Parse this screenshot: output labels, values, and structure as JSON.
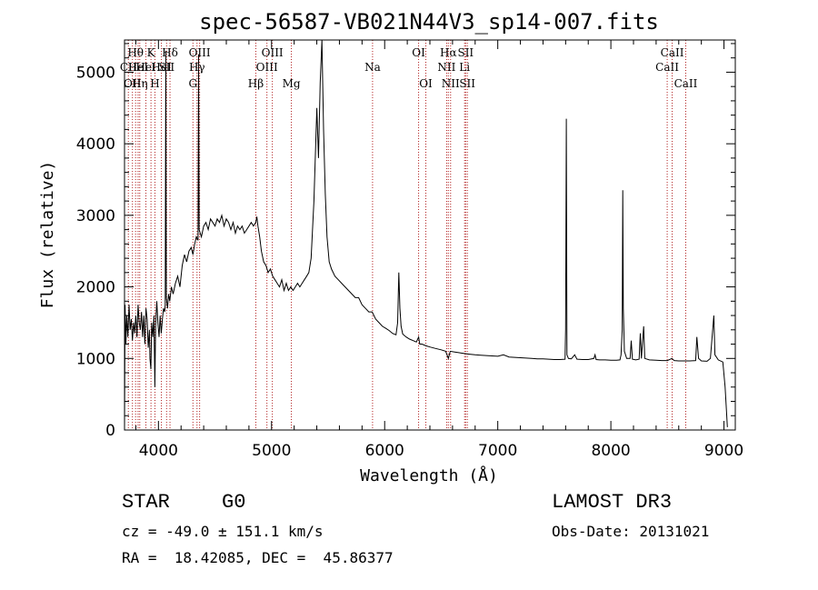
{
  "chart_data": {
    "type": "line",
    "title": "spec-56587-VB021N44V3_sp14-007.fits",
    "xlabel": "Wavelength (Å)",
    "ylabel": "Flux (relative)",
    "xlim": [
      3700,
      9100
    ],
    "ylim": [
      0,
      5450
    ],
    "xticks": [
      4000,
      5000,
      6000,
      7000,
      8000,
      9000
    ],
    "xticks_minor_step": 200,
    "yticks": [
      0,
      1000,
      2000,
      3000,
      4000,
      5000
    ],
    "yticks_minor_step": 200,
    "grid": false,
    "series": [
      {
        "name": "flux",
        "points": [
          [
            3700,
            0
          ],
          [
            3705,
            1750
          ],
          [
            3712,
            1200
          ],
          [
            3720,
            1600
          ],
          [
            3730,
            1300
          ],
          [
            3740,
            1750
          ],
          [
            3750,
            1400
          ],
          [
            3760,
            1550
          ],
          [
            3770,
            1250
          ],
          [
            3780,
            1500
          ],
          [
            3790,
            1350
          ],
          [
            3800,
            1600
          ],
          [
            3810,
            1300
          ],
          [
            3820,
            1750
          ],
          [
            3830,
            1500
          ],
          [
            3840,
            1400
          ],
          [
            3850,
            1650
          ],
          [
            3860,
            1300
          ],
          [
            3870,
            1600
          ],
          [
            3880,
            1200
          ],
          [
            3890,
            1700
          ],
          [
            3900,
            1550
          ],
          [
            3910,
            1150
          ],
          [
            3920,
            1400
          ],
          [
            3925,
            1000
          ],
          [
            3933,
            850
          ],
          [
            3940,
            1500
          ],
          [
            3950,
            1300
          ],
          [
            3960,
            1600
          ],
          [
            3968,
            600
          ],
          [
            3975,
            1450
          ],
          [
            3985,
            1800
          ],
          [
            3995,
            1500
          ],
          [
            4005,
            1300
          ],
          [
            4015,
            1600
          ],
          [
            4025,
            1350
          ],
          [
            4035,
            1550
          ],
          [
            4045,
            1700
          ],
          [
            4055,
            1650
          ],
          [
            4060,
            1750
          ],
          [
            4065,
            5300
          ],
          [
            4070,
            1850
          ],
          [
            4080,
            1700
          ],
          [
            4090,
            1900
          ],
          [
            4100,
            1800
          ],
          [
            4115,
            2000
          ],
          [
            4130,
            1900
          ],
          [
            4150,
            2050
          ],
          [
            4170,
            2150
          ],
          [
            4190,
            2000
          ],
          [
            4210,
            2300
          ],
          [
            4230,
            2450
          ],
          [
            4250,
            2350
          ],
          [
            4270,
            2500
          ],
          [
            4290,
            2550
          ],
          [
            4305,
            2450
          ],
          [
            4320,
            2600
          ],
          [
            4335,
            2700
          ],
          [
            4350,
            2650
          ],
          [
            4355,
            5250
          ],
          [
            4360,
            2800
          ],
          [
            4380,
            2700
          ],
          [
            4400,
            2850
          ],
          [
            4420,
            2900
          ],
          [
            4440,
            2800
          ],
          [
            4460,
            2950
          ],
          [
            4480,
            2900
          ],
          [
            4500,
            2850
          ],
          [
            4520,
            2950
          ],
          [
            4540,
            2900
          ],
          [
            4560,
            3000
          ],
          [
            4580,
            2850
          ],
          [
            4600,
            2950
          ],
          [
            4620,
            2900
          ],
          [
            4640,
            2800
          ],
          [
            4660,
            2900
          ],
          [
            4680,
            2750
          ],
          [
            4700,
            2850
          ],
          [
            4720,
            2800
          ],
          [
            4740,
            2850
          ],
          [
            4760,
            2750
          ],
          [
            4780,
            2800
          ],
          [
            4800,
            2850
          ],
          [
            4820,
            2900
          ],
          [
            4840,
            2850
          ],
          [
            4860,
            2900
          ],
          [
            4870,
            2980
          ],
          [
            4880,
            2850
          ],
          [
            4895,
            2700
          ],
          [
            4910,
            2500
          ],
          [
            4930,
            2350
          ],
          [
            4950,
            2300
          ],
          [
            4970,
            2200
          ],
          [
            4990,
            2250
          ],
          [
            5010,
            2150
          ],
          [
            5030,
            2100
          ],
          [
            5050,
            2050
          ],
          [
            5070,
            2000
          ],
          [
            5090,
            2100
          ],
          [
            5110,
            1950
          ],
          [
            5130,
            2050
          ],
          [
            5150,
            1950
          ],
          [
            5170,
            2000
          ],
          [
            5190,
            1950
          ],
          [
            5210,
            2000
          ],
          [
            5230,
            2050
          ],
          [
            5250,
            2000
          ],
          [
            5270,
            2050
          ],
          [
            5290,
            2100
          ],
          [
            5310,
            2150
          ],
          [
            5330,
            2200
          ],
          [
            5350,
            2400
          ],
          [
            5375,
            3200
          ],
          [
            5400,
            4500
          ],
          [
            5415,
            3800
          ],
          [
            5430,
            4850
          ],
          [
            5445,
            5450
          ],
          [
            5460,
            4200
          ],
          [
            5475,
            3300
          ],
          [
            5490,
            2700
          ],
          [
            5510,
            2350
          ],
          [
            5530,
            2250
          ],
          [
            5560,
            2150
          ],
          [
            5590,
            2100
          ],
          [
            5620,
            2050
          ],
          [
            5650,
            2000
          ],
          [
            5680,
            1950
          ],
          [
            5710,
            1900
          ],
          [
            5740,
            1850
          ],
          [
            5770,
            1850
          ],
          [
            5800,
            1750
          ],
          [
            5830,
            1700
          ],
          [
            5860,
            1650
          ],
          [
            5890,
            1650
          ],
          [
            5920,
            1550
          ],
          [
            5950,
            1500
          ],
          [
            5980,
            1450
          ],
          [
            6010,
            1420
          ],
          [
            6040,
            1390
          ],
          [
            6070,
            1350
          ],
          [
            6100,
            1330
          ],
          [
            6115,
            1500
          ],
          [
            6125,
            2200
          ],
          [
            6135,
            1700
          ],
          [
            6145,
            1450
          ],
          [
            6160,
            1340
          ],
          [
            6190,
            1300
          ],
          [
            6220,
            1270
          ],
          [
            6250,
            1250
          ],
          [
            6280,
            1230
          ],
          [
            6300,
            1300
          ],
          [
            6310,
            1200
          ],
          [
            6330,
            1200
          ],
          [
            6360,
            1180
          ],
          [
            6400,
            1160
          ],
          [
            6450,
            1140
          ],
          [
            6500,
            1120
          ],
          [
            6540,
            1100
          ],
          [
            6563,
            1000
          ],
          [
            6580,
            1100
          ],
          [
            6620,
            1090
          ],
          [
            6660,
            1080
          ],
          [
            6700,
            1070
          ],
          [
            6750,
            1060
          ],
          [
            6800,
            1050
          ],
          [
            6850,
            1045
          ],
          [
            6900,
            1040
          ],
          [
            6950,
            1035
          ],
          [
            7000,
            1030
          ],
          [
            7050,
            1050
          ],
          [
            7100,
            1020
          ],
          [
            7150,
            1015
          ],
          [
            7200,
            1010
          ],
          [
            7250,
            1005
          ],
          [
            7300,
            1000
          ],
          [
            7350,
            995
          ],
          [
            7400,
            995
          ],
          [
            7450,
            990
          ],
          [
            7500,
            985
          ],
          [
            7550,
            985
          ],
          [
            7595,
            990
          ],
          [
            7600,
            1400
          ],
          [
            7606,
            4350
          ],
          [
            7612,
            1050
          ],
          [
            7625,
            1000
          ],
          [
            7650,
            995
          ],
          [
            7680,
            1050
          ],
          [
            7700,
            990
          ],
          [
            7750,
            985
          ],
          [
            7800,
            985
          ],
          [
            7850,
            1000
          ],
          [
            7860,
            1050
          ],
          [
            7870,
            985
          ],
          [
            7900,
            980
          ],
          [
            7950,
            980
          ],
          [
            8000,
            975
          ],
          [
            8050,
            975
          ],
          [
            8080,
            980
          ],
          [
            8090,
            1050
          ],
          [
            8100,
            1400
          ],
          [
            8105,
            3350
          ],
          [
            8110,
            1700
          ],
          [
            8120,
            1100
          ],
          [
            8140,
            1000
          ],
          [
            8170,
            1000
          ],
          [
            8180,
            1250
          ],
          [
            8190,
            990
          ],
          [
            8220,
            980
          ],
          [
            8250,
            990
          ],
          [
            8260,
            1350
          ],
          [
            8270,
            1000
          ],
          [
            8290,
            1450
          ],
          [
            8300,
            1000
          ],
          [
            8340,
            980
          ],
          [
            8400,
            975
          ],
          [
            8450,
            970
          ],
          [
            8500,
            970
          ],
          [
            8540,
            1000
          ],
          [
            8560,
            970
          ],
          [
            8600,
            965
          ],
          [
            8650,
            965
          ],
          [
            8700,
            965
          ],
          [
            8750,
            970
          ],
          [
            8760,
            1300
          ],
          [
            8775,
            1000
          ],
          [
            8800,
            965
          ],
          [
            8850,
            960
          ],
          [
            8880,
            1000
          ],
          [
            8910,
            1600
          ],
          [
            8920,
            1050
          ],
          [
            8950,
            980
          ],
          [
            8990,
            950
          ],
          [
            9010,
            600
          ],
          [
            9030,
            40
          ]
        ]
      }
    ],
    "lines": [
      {
        "x": 3734,
        "labels": [
          "CII"
        ],
        "row": 2
      },
      {
        "x": 3770,
        "labels": [
          "OII"
        ],
        "row": 3
      },
      {
        "x": 3798,
        "labels": [
          "Hθ"
        ],
        "row": 1
      },
      {
        "x": 3820,
        "labels": [
          "HeI"
        ],
        "row": 2
      },
      {
        "x": 3835,
        "labels": [
          "Hη"
        ],
        "row": 3
      },
      {
        "x": 3889,
        "labels": [
          "HeI"
        ],
        "row": 2
      },
      {
        "x": 3934,
        "labels": [
          "K"
        ],
        "row": 1
      },
      {
        "x": 3969,
        "labels": [
          "H"
        ],
        "row": 3
      },
      {
        "x": 4026,
        "labels": [
          "HeI"
        ],
        "row": 2
      },
      {
        "x": 4072,
        "labels": [
          "SII"
        ],
        "row": 2
      },
      {
        "x": 4102,
        "labels": [
          "Hδ"
        ],
        "row": 1
      },
      {
        "x": 4305,
        "labels": [
          "G"
        ],
        "row": 3
      },
      {
        "x": 4341,
        "labels": [
          "Hγ"
        ],
        "row": 2
      },
      {
        "x": 4364,
        "labels": [
          "OIII"
        ],
        "row": 1
      },
      {
        "x": 4861,
        "labels": [
          "Hβ"
        ],
        "row": 3
      },
      {
        "x": 4959,
        "labels": [
          "OIII"
        ],
        "row": 2
      },
      {
        "x": 5007,
        "labels": [
          "OIII"
        ],
        "row": 1
      },
      {
        "x": 5175,
        "labels": [
          "Mg"
        ],
        "row": 3
      },
      {
        "x": 5893,
        "labels": [
          "Na"
        ],
        "row": 2
      },
      {
        "x": 6300,
        "labels": [
          "OI"
        ],
        "row": 1
      },
      {
        "x": 6364,
        "labels": [
          "OI"
        ],
        "row": 3
      },
      {
        "x": 6548,
        "labels": [
          "NII"
        ],
        "row": 2
      },
      {
        "x": 6563,
        "labels": [
          "Hα"
        ],
        "row": 1
      },
      {
        "x": 6583,
        "labels": [
          "NII"
        ],
        "row": 3
      },
      {
        "x": 6707,
        "labels": [
          "Li"
        ],
        "row": 2
      },
      {
        "x": 6716,
        "labels": [
          "SII"
        ],
        "row": 1
      },
      {
        "x": 6731,
        "labels": [
          "SII"
        ],
        "row": 3
      },
      {
        "x": 8498,
        "labels": [
          "CaII"
        ],
        "row": 2
      },
      {
        "x": 8542,
        "labels": [
          "CaII"
        ],
        "row": 1
      },
      {
        "x": 8662,
        "labels": [
          "CaII"
        ],
        "row": 3
      }
    ]
  },
  "info": {
    "class": "STAR",
    "subclass": "G0",
    "survey": "LAMOST DR3",
    "cz": "cz = -49.0 ± 151.1 km/s",
    "obs_date": "Obs-Date: 20131021",
    "coords": "RA =  18.42085, DEC =  45.86377"
  },
  "colors": {
    "axis": "#000000",
    "spectrum": "#000000",
    "line_markers": "#b22222"
  }
}
